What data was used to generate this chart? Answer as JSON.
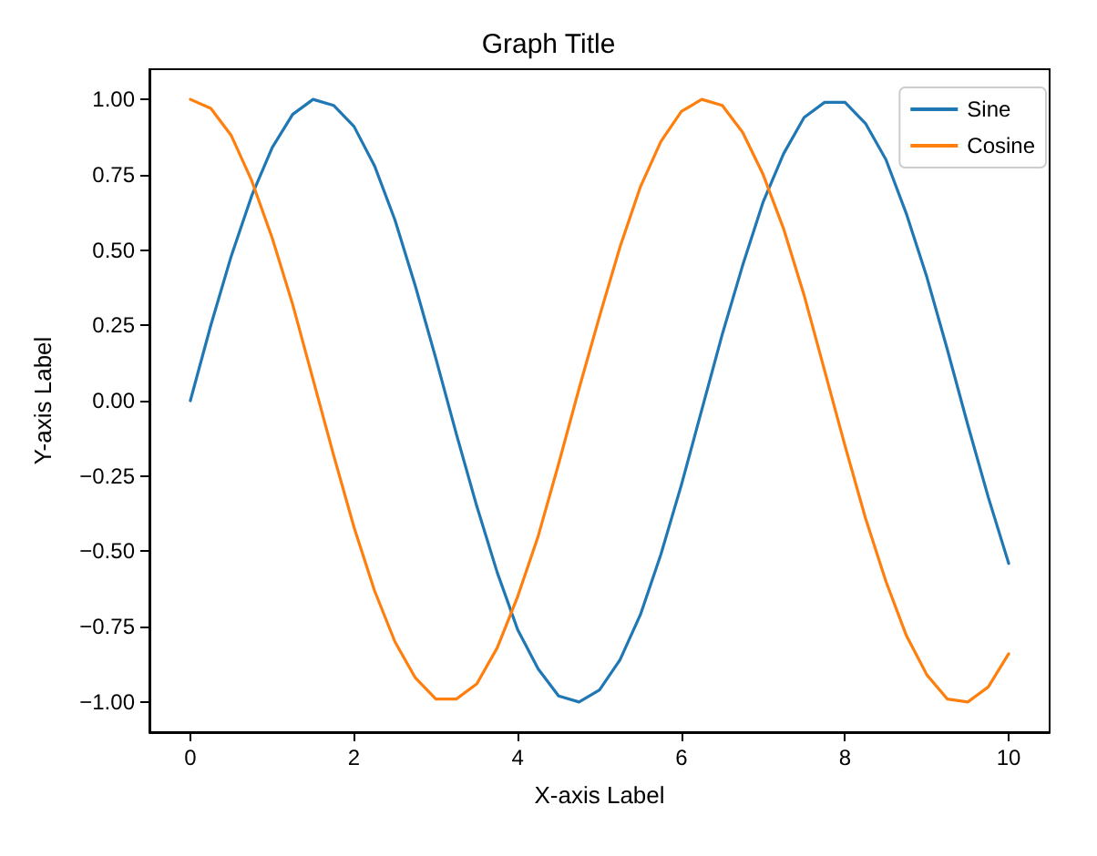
{
  "chart_data": {
    "type": "line",
    "title": "Graph Title",
    "xlabel": "X-axis Label",
    "ylabel": "Y-axis Label",
    "x": [
      0,
      0.25,
      0.5,
      0.75,
      1,
      1.25,
      1.5,
      1.75,
      2,
      2.25,
      2.5,
      2.75,
      3,
      3.25,
      3.5,
      3.75,
      4,
      4.25,
      4.5,
      4.75,
      5,
      5.25,
      5.5,
      5.75,
      6,
      6.25,
      6.5,
      6.75,
      7,
      7.25,
      7.5,
      7.75,
      8,
      8.25,
      8.5,
      8.75,
      9,
      9.25,
      9.5,
      9.75,
      10
    ],
    "series": [
      {
        "name": "Sine",
        "color": "#1f77b4",
        "values": [
          0,
          0.25,
          0.48,
          0.68,
          0.84,
          0.95,
          1.0,
          0.98,
          0.91,
          0.78,
          0.6,
          0.38,
          0.14,
          -0.11,
          -0.35,
          -0.57,
          -0.76,
          -0.89,
          -0.98,
          -1.0,
          -0.96,
          -0.86,
          -0.71,
          -0.51,
          -0.28,
          -0.03,
          0.22,
          0.45,
          0.66,
          0.82,
          0.94,
          0.99,
          0.99,
          0.92,
          0.8,
          0.62,
          0.41,
          0.17,
          -0.08,
          -0.32,
          -0.54
        ]
      },
      {
        "name": "Cosine",
        "color": "#ff7f0e",
        "values": [
          1.0,
          0.97,
          0.88,
          0.73,
          0.54,
          0.32,
          0.07,
          -0.18,
          -0.42,
          -0.63,
          -0.8,
          -0.92,
          -0.99,
          -0.99,
          -0.94,
          -0.82,
          -0.65,
          -0.45,
          -0.21,
          0.04,
          0.28,
          0.51,
          0.71,
          0.86,
          0.96,
          1.0,
          0.98,
          0.89,
          0.75,
          0.57,
          0.35,
          0.1,
          -0.15,
          -0.39,
          -0.6,
          -0.78,
          -0.91,
          -0.99,
          -1.0,
          -0.95,
          -0.84
        ]
      }
    ],
    "xlim": [
      -0.5,
      10.5
    ],
    "xticks": [
      0,
      2,
      4,
      6,
      8,
      10
    ],
    "ylim": [
      -1.1,
      1.1
    ],
    "yticks": [
      {
        "value": -1,
        "label": "−1.00"
      },
      {
        "value": -0.75,
        "label": "−0.75"
      },
      {
        "value": -0.5,
        "label": "−0.50"
      },
      {
        "value": -0.25,
        "label": "−0.25"
      },
      {
        "value": 0,
        "label": "0.00"
      },
      {
        "value": 0.25,
        "label": "0.25"
      },
      {
        "value": 0.5,
        "label": "0.50"
      },
      {
        "value": 0.75,
        "label": "0.75"
      },
      {
        "value": 1,
        "label": "1.00"
      }
    ],
    "legend": "top right",
    "grid": false,
    "marker": "none",
    "line_style": "solid"
  }
}
